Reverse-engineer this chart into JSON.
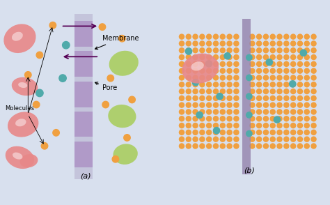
{
  "bg_color": "#d8e0ee",
  "membrane_color_a": "#a090b8",
  "block_color": "#b09ac8",
  "orange_mol": "#f0a040",
  "teal_mol": "#50aaaa",
  "pink_blob": "#e88888",
  "pink_blob_light": "#f0aaaa",
  "green_blob": "#aace60",
  "arrow_color": "#550055",
  "label_a": "(a)",
  "label_b": "(b)",
  "membrane_label": "Membrane",
  "pore_label": "Pore",
  "molecules_label": "Molecules",
  "membrane_color_b": "#9888b0",
  "orange_b": "#f0a040",
  "teal_b": "#50aaaa"
}
